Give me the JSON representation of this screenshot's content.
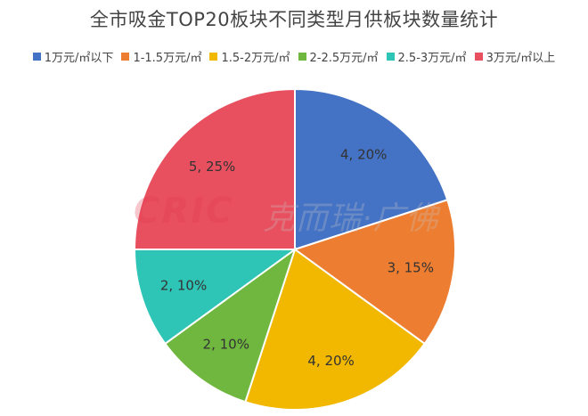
{
  "chart_data": {
    "type": "pie",
    "title": "全市吸金TOP20板块不同类型月供板块数量统计",
    "categories": [
      "1万元/㎡以下",
      "1-1.5万元/㎡",
      "1.5-2万元/㎡",
      "2-2.5万元/㎡",
      "2.5-3万元/㎡",
      "3万元/㎡以上"
    ],
    "values": [
      4,
      3,
      4,
      2,
      2,
      5
    ],
    "data_labels": [
      "4, 20%",
      "3, 15%",
      "4, 20%",
      "2, 10%",
      "2, 10%",
      "5, 25%"
    ],
    "colors": [
      "#4472c4",
      "#ed7d31",
      "#f2b800",
      "#70b73f",
      "#2ec4b6",
      "#e8505f"
    ],
    "legend_position": "top"
  },
  "watermark": {
    "logo_text": "CRIC",
    "brand_text": "克而瑞·广佛"
  }
}
